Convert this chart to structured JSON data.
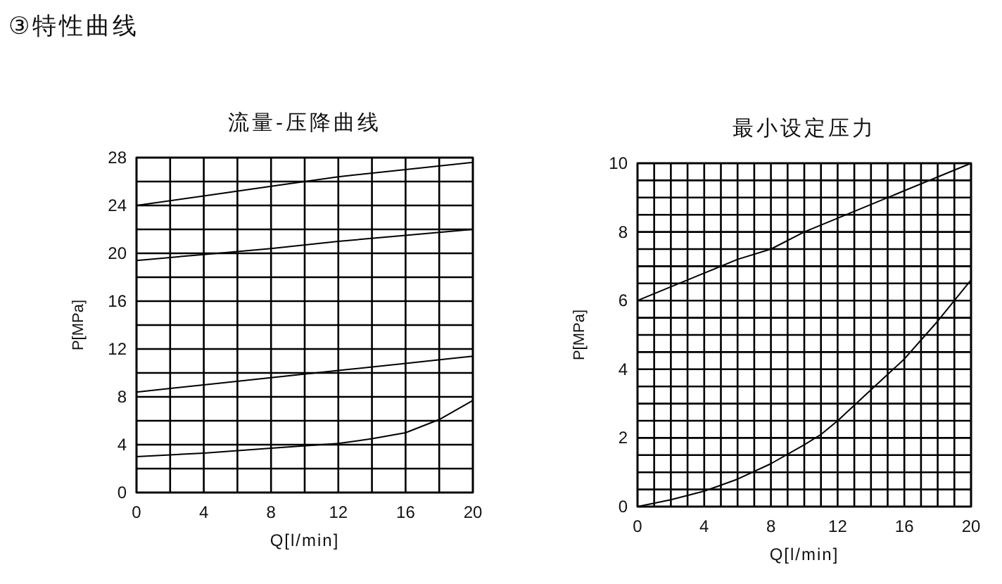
{
  "chart_data": [
    {
      "type": "line",
      "title": "流量-压降曲线",
      "xlabel": "Q[l/min]",
      "ylabel": "P[MPa]",
      "annotations": [
        "③特性曲线"
      ],
      "grid": true,
      "xlim": [
        0,
        20
      ],
      "ylim": [
        0,
        28
      ],
      "xticks": [
        0,
        {
          "value": 2,
          "label": null
        },
        4,
        {
          "value": 6,
          "label": null
        },
        8,
        {
          "value": 10,
          "label": null
        },
        12,
        {
          "value": 14,
          "label": null
        },
        16,
        {
          "value": 18,
          "label": null
        },
        20
      ],
      "yticks": [
        0,
        {
          "value": 2,
          "label": null
        },
        4,
        {
          "value": 6,
          "label": null
        },
        8,
        {
          "value": 10,
          "label": null
        },
        12,
        {
          "value": 14,
          "label": null
        },
        16,
        {
          "value": 18,
          "label": null
        },
        20,
        {
          "value": 22,
          "label": null
        },
        24,
        {
          "value": 26,
          "label": null
        },
        28
      ],
      "series": [
        {
          "color": "#000000",
          "x": [
            0,
            4,
            8,
            10,
            12,
            16,
            20
          ],
          "values": [
            24,
            24.8,
            25.6,
            26,
            26.4,
            27,
            27.6
          ]
        },
        {
          "color": "#000000",
          "x": [
            0,
            4,
            8,
            12,
            16,
            20
          ],
          "values": [
            19.4,
            19.9,
            20.4,
            21,
            21.5,
            22
          ]
        },
        {
          "color": "#000000",
          "x": [
            0,
            4,
            8,
            12,
            16,
            20
          ],
          "values": [
            8.4,
            9,
            9.6,
            10.2,
            10.8,
            11.4
          ]
        },
        {
          "color": "#000000",
          "x": [
            0,
            4,
            8,
            12,
            14,
            16,
            18,
            20
          ],
          "values": [
            3,
            3.3,
            3.7,
            4.1,
            4.5,
            5,
            6.1,
            7.7
          ]
        }
      ]
    },
    {
      "type": "line",
      "title": "最小设定压力",
      "xlabel": "Q[l/min]",
      "ylabel": "P[MPa]",
      "grid": true,
      "xlim": [
        0,
        20
      ],
      "ylim": [
        0,
        10
      ],
      "xticks": [
        0,
        {
          "value": 1,
          "label": null
        },
        {
          "value": 2,
          "label": null
        },
        {
          "value": 3,
          "label": null
        },
        4,
        {
          "value": 5,
          "label": null
        },
        {
          "value": 6,
          "label": null
        },
        {
          "value": 7,
          "label": null
        },
        8,
        {
          "value": 9,
          "label": null
        },
        {
          "value": 10,
          "label": null
        },
        {
          "value": 11,
          "label": null
        },
        12,
        {
          "value": 13,
          "label": null
        },
        {
          "value": 14,
          "label": null
        },
        {
          "value": 15,
          "label": null
        },
        16,
        {
          "value": 17,
          "label": null
        },
        {
          "value": 18,
          "label": null
        },
        {
          "value": 19,
          "label": null
        },
        20
      ],
      "yticks": [
        0,
        {
          "value": 0.5,
          "label": null
        },
        {
          "value": 1,
          "label": null
        },
        {
          "value": 1.5,
          "label": null
        },
        2,
        {
          "value": 2.5,
          "label": null
        },
        {
          "value": 3,
          "label": null
        },
        {
          "value": 3.5,
          "label": null
        },
        4,
        {
          "value": 4.5,
          "label": null
        },
        {
          "value": 5,
          "label": null
        },
        {
          "value": 5.5,
          "label": null
        },
        6,
        {
          "value": 6.5,
          "label": null
        },
        {
          "value": 7,
          "label": null
        },
        {
          "value": 7.5,
          "label": null
        },
        8,
        {
          "value": 8.5,
          "label": null
        },
        {
          "value": 9,
          "label": null
        },
        {
          "value": 9.5,
          "label": null
        },
        10
      ],
      "series": [
        {
          "color": "#000000",
          "x": [
            0,
            2,
            4,
            6,
            8,
            10,
            12,
            14,
            16,
            18,
            20
          ],
          "values": [
            6,
            6.4,
            6.8,
            7.2,
            7.5,
            8,
            8.4,
            8.8,
            9.2,
            9.6,
            10
          ]
        },
        {
          "color": "#000000",
          "x": [
            0,
            2,
            4,
            6,
            8,
            10,
            11,
            12,
            14,
            16,
            18,
            20
          ],
          "values": [
            0,
            0.2,
            0.45,
            0.8,
            1.25,
            1.8,
            2.1,
            2.5,
            3.4,
            4.3,
            5.4,
            6.6
          ]
        }
      ]
    }
  ]
}
